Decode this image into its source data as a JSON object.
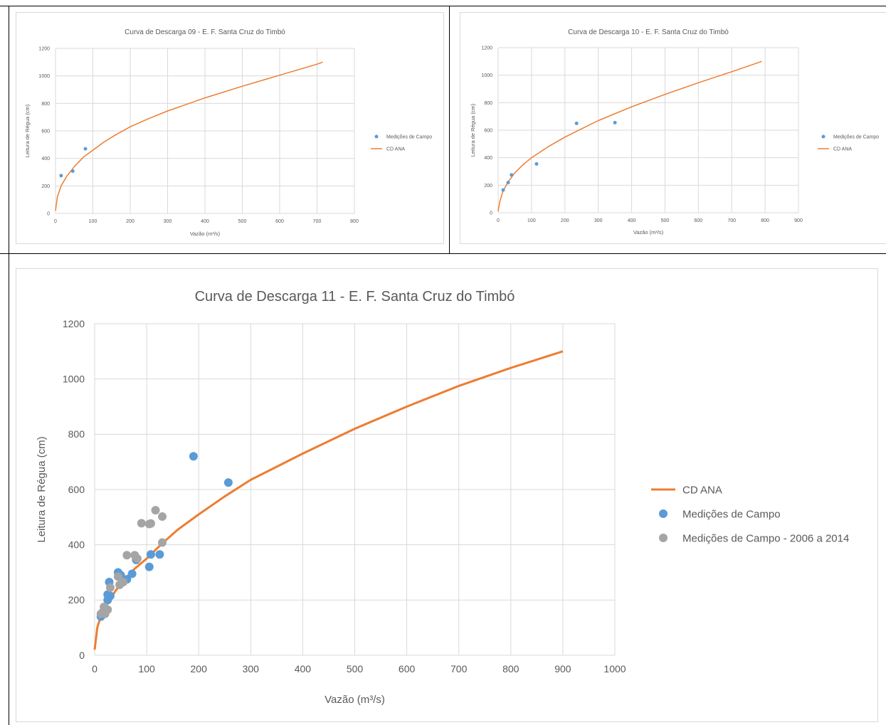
{
  "colors": {
    "curve": "#ED7D31",
    "field": "#5B9BD5",
    "historic": "#A5A5A5",
    "grid": "#D9D9D9",
    "text": "#595959"
  },
  "chart_data": [
    {
      "type": "scatter",
      "title": "Curva de Descarga 09 - E. F. Santa Cruz do Timbó",
      "xlabel": "Vazão (m³/s)",
      "ylabel": "Leitura de Régua (cm)",
      "xlim": [
        0,
        800
      ],
      "ylim": [
        0,
        1200
      ],
      "xticks": [
        0,
        100,
        200,
        300,
        400,
        500,
        600,
        700,
        800
      ],
      "yticks": [
        0,
        200,
        400,
        600,
        800,
        1000,
        1200
      ],
      "grid": true,
      "legend_position": "right",
      "legend_order": [
        "Medições de Campo",
        "CD ANA"
      ],
      "series": [
        {
          "name": "Medições de Campo",
          "kind": "scatter",
          "color": "#5B9BD5",
          "points": [
            [
              15,
              275
            ],
            [
              46,
              308
            ],
            [
              80,
              470
            ]
          ]
        },
        {
          "name": "CD ANA",
          "kind": "line",
          "color": "#ED7D31",
          "points": [
            [
              0,
              20
            ],
            [
              5,
              120
            ],
            [
              15,
              200
            ],
            [
              30,
              270
            ],
            [
              50,
              340
            ],
            [
              75,
              410
            ],
            [
              100,
              460
            ],
            [
              130,
              520
            ],
            [
              160,
              570
            ],
            [
              200,
              630
            ],
            [
              250,
              690
            ],
            [
              300,
              745
            ],
            [
              400,
              840
            ],
            [
              500,
              925
            ],
            [
              600,
              1005
            ],
            [
              700,
              1085
            ],
            [
              715,
              1100
            ]
          ]
        }
      ]
    },
    {
      "type": "scatter",
      "title": "Curva de Descarga 10 - E. F. Santa Cruz do Timbó",
      "xlabel": "Vazão (m³/s)",
      "ylabel": "Leitura de Régua (cm)",
      "xlim": [
        0,
        900
      ],
      "ylim": [
        0,
        1200
      ],
      "xticks": [
        0,
        100,
        200,
        300,
        400,
        500,
        600,
        700,
        800,
        900
      ],
      "yticks": [
        0,
        200,
        400,
        600,
        800,
        1000,
        1200
      ],
      "grid": true,
      "legend_position": "right",
      "legend_order": [
        "Medições de Campo",
        "CD ANA"
      ],
      "series": [
        {
          "name": "Medições de Campo",
          "kind": "scatter",
          "color": "#5B9BD5",
          "points": [
            [
              15,
              165
            ],
            [
              30,
              220
            ],
            [
              40,
              275
            ],
            [
              115,
              355
            ],
            [
              235,
              650
            ],
            [
              350,
              655
            ]
          ]
        },
        {
          "name": "CD ANA",
          "kind": "line",
          "color": "#ED7D31",
          "points": [
            [
              0,
              10
            ],
            [
              5,
              80
            ],
            [
              15,
              160
            ],
            [
              30,
              225
            ],
            [
              50,
              290
            ],
            [
              75,
              350
            ],
            [
              100,
              400
            ],
            [
              150,
              480
            ],
            [
              200,
              550
            ],
            [
              250,
              610
            ],
            [
              300,
              670
            ],
            [
              400,
              770
            ],
            [
              500,
              860
            ],
            [
              600,
              945
            ],
            [
              700,
              1025
            ],
            [
              790,
              1100
            ]
          ]
        }
      ]
    },
    {
      "type": "scatter",
      "title": "Curva de Descarga 11 - E. F. Santa Cruz do Timbó",
      "xlabel": "Vazão (m³/s)",
      "ylabel": "Leitura de Régua (cm)",
      "xlim": [
        0,
        1000
      ],
      "ylim": [
        0,
        1200
      ],
      "xticks": [
        0,
        100,
        200,
        300,
        400,
        500,
        600,
        700,
        800,
        900,
        1000
      ],
      "yticks": [
        0,
        200,
        400,
        600,
        800,
        1000,
        1200
      ],
      "grid": true,
      "legend_position": "right",
      "legend_order": [
        "CD ANA",
        "Medições de Campo",
        "Medições de Campo - 2006 a 2014"
      ],
      "series": [
        {
          "name": "CD ANA",
          "kind": "line",
          "color": "#ED7D31",
          "points": [
            [
              0,
              20
            ],
            [
              5,
              100
            ],
            [
              10,
              130
            ],
            [
              20,
              170
            ],
            [
              30,
              205
            ],
            [
              50,
              260
            ],
            [
              75,
              310
            ],
            [
              100,
              350
            ],
            [
              130,
              405
            ],
            [
              160,
              455
            ],
            [
              200,
              510
            ],
            [
              250,
              575
            ],
            [
              300,
              635
            ],
            [
              400,
              730
            ],
            [
              500,
              820
            ],
            [
              600,
              900
            ],
            [
              700,
              975
            ],
            [
              800,
              1040
            ],
            [
              900,
              1100
            ]
          ]
        },
        {
          "name": "Medições de Campo",
          "kind": "scatter",
          "color": "#5B9BD5",
          "points": [
            [
              12,
              140
            ],
            [
              15,
              148
            ],
            [
              25,
              200
            ],
            [
              25,
              220
            ],
            [
              28,
              265
            ],
            [
              30,
              215
            ],
            [
              45,
              300
            ],
            [
              50,
              290
            ],
            [
              62,
              275
            ],
            [
              72,
              295
            ],
            [
              80,
              345
            ],
            [
              105,
              320
            ],
            [
              108,
              365
            ],
            [
              125,
              365
            ],
            [
              190,
              720
            ],
            [
              257,
              625
            ]
          ]
        },
        {
          "name": "Medições de Campo - 2006 a 2014",
          "kind": "scatter",
          "color": "#A5A5A5",
          "points": [
            [
              12,
              150
            ],
            [
              15,
              155
            ],
            [
              18,
              175
            ],
            [
              20,
              150
            ],
            [
              25,
              165
            ],
            [
              30,
              245
            ],
            [
              45,
              285
            ],
            [
              48,
              255
            ],
            [
              55,
              265
            ],
            [
              62,
              362
            ],
            [
              77,
              362
            ],
            [
              82,
              350
            ],
            [
              90,
              478
            ],
            [
              105,
              475
            ],
            [
              108,
              477
            ],
            [
              117,
              525
            ],
            [
              130,
              502
            ],
            [
              130,
              408
            ]
          ]
        }
      ]
    }
  ]
}
